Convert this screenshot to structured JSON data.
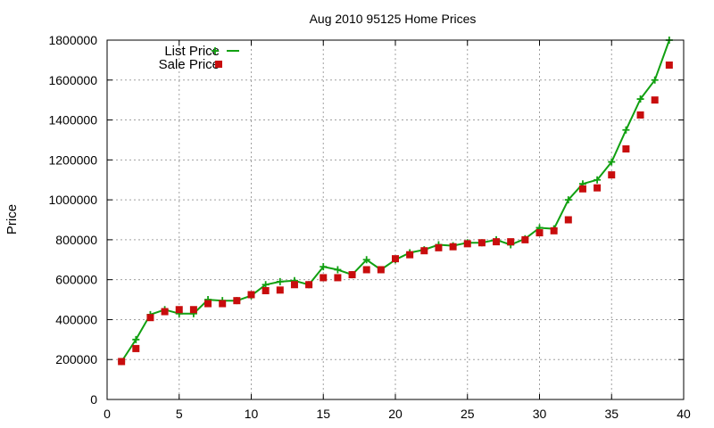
{
  "chart_data": {
    "type": "line",
    "title": "Aug 2010 95125 Home Prices",
    "xlabel": "",
    "ylabel": "Price",
    "xlim": [
      0,
      40
    ],
    "ylim": [
      0,
      1800000
    ],
    "xticks": [
      0,
      5,
      10,
      15,
      20,
      25,
      30,
      35,
      40
    ],
    "yticks": [
      0,
      200000,
      400000,
      600000,
      800000,
      1000000,
      1200000,
      1400000,
      1600000,
      1800000
    ],
    "grid": true,
    "legend_position": "top-left",
    "x": [
      1,
      2,
      3,
      4,
      5,
      6,
      7,
      8,
      9,
      10,
      11,
      12,
      13,
      14,
      15,
      16,
      17,
      18,
      19,
      20,
      21,
      22,
      23,
      24,
      25,
      26,
      27,
      28,
      29,
      30,
      31,
      32,
      33,
      34,
      35,
      36,
      37,
      38,
      39
    ],
    "series": [
      {
        "name": "List Price",
        "style": "line-plus",
        "color": "#11a011",
        "values": [
          190000,
          300000,
          425000,
          450000,
          430000,
          430000,
          500000,
          495000,
          495000,
          520000,
          575000,
          590000,
          595000,
          575000,
          665000,
          650000,
          625000,
          700000,
          650000,
          700000,
          735000,
          750000,
          775000,
          770000,
          785000,
          785000,
          800000,
          775000,
          805000,
          860000,
          855000,
          1000000,
          1080000,
          1100000,
          1190000,
          1350000,
          1505000,
          1600000,
          1800000
        ]
      },
      {
        "name": "Sale Price",
        "style": "square",
        "color": "#c80d0d",
        "values": [
          190000,
          255000,
          410000,
          440000,
          450000,
          450000,
          480000,
          480000,
          495000,
          525000,
          545000,
          548000,
          575000,
          575000,
          610000,
          610000,
          625000,
          650000,
          650000,
          705000,
          725000,
          745000,
          760000,
          765000,
          780000,
          785000,
          790000,
          790000,
          800000,
          835000,
          845000,
          900000,
          1055000,
          1060000,
          1125000,
          1255000,
          1425000,
          1500000,
          1675000
        ]
      }
    ]
  }
}
